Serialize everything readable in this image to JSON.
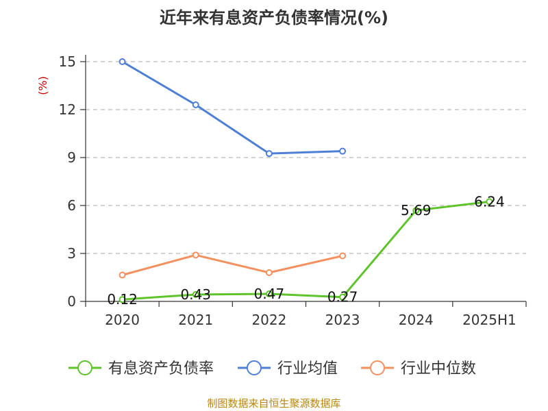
{
  "chart_data": {
    "type": "line",
    "title": "近年来有息资产负债率情况(%)",
    "ylabel": "(%)",
    "categories": [
      "2020",
      "2021",
      "2022",
      "2023",
      "2024",
      "2025H1"
    ],
    "ylim": [
      0,
      15
    ],
    "yticks": [
      0,
      3,
      6,
      9,
      12,
      15
    ],
    "grid": true,
    "legend_position": "bottom",
    "series": [
      {
        "name": "有息资产负债率",
        "color": "#5fc32b",
        "values": [
          0.12,
          0.43,
          0.47,
          0.27,
          5.69,
          6.24
        ],
        "labels": [
          "0.12",
          "0.43",
          "0.47",
          "0.27",
          "5.69",
          "6.24"
        ]
      },
      {
        "name": "行业均值",
        "color": "#4e7fd6",
        "values": [
          15.0,
          12.3,
          9.25,
          9.4,
          null,
          null
        ]
      },
      {
        "name": "行业中位数",
        "color": "#f4905e",
        "values": [
          1.65,
          2.9,
          1.8,
          2.85,
          null,
          null
        ]
      }
    ]
  },
  "source": "制图数据来自恒生聚源数据库"
}
